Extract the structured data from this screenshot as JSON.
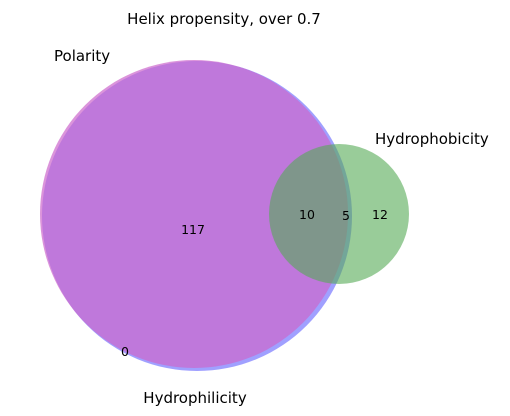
{
  "chart_data": {
    "type": "venn",
    "title": "Helix propensity, over 0.7",
    "sets": [
      {
        "name": "Polarity",
        "color": "#cc66cc"
      },
      {
        "name": "Hydrophilicity",
        "color": "#7777ff"
      },
      {
        "name": "Hydrophobicity",
        "color": "#55aa55"
      }
    ],
    "regions": [
      {
        "sets": [
          "Polarity",
          "Hydrophilicity"
        ],
        "count": "117"
      },
      {
        "sets": [
          "Hydrophilicity"
        ],
        "count": "0"
      },
      {
        "sets": [
          "Polarity",
          "Hydrophilicity",
          "Hydrophobicity"
        ],
        "count": "10"
      },
      {
        "sets": [
          "Hydrophilicity",
          "Hydrophobicity"
        ],
        "count": "5"
      },
      {
        "sets": [
          "Hydrophobicity"
        ],
        "count": "12"
      }
    ]
  }
}
